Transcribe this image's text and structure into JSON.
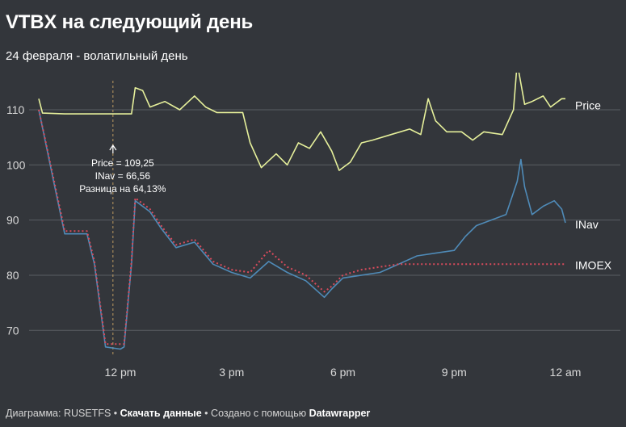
{
  "title": "VTBX на следующий день",
  "subtitle": "24 февраля - волатильный день",
  "footer": {
    "prefix": "Диаграмма: RUSETFS",
    "sep1": "•",
    "download": "Скачать данные",
    "sep2": "•",
    "created_with": "Создано с помощью",
    "tool": "Datawrapper"
  },
  "chart_data": {
    "type": "line",
    "x_ticks": [
      {
        "hour": 12,
        "label": "12 pm"
      },
      {
        "hour": 15,
        "label": "3 pm"
      },
      {
        "hour": 18,
        "label": "6 pm"
      },
      {
        "hour": 21,
        "label": "9 pm"
      },
      {
        "hour": 24,
        "label": "12 am"
      }
    ],
    "xlim": [
      9.8,
      24.0
    ],
    "y_ticks": [
      70,
      80,
      90,
      100,
      110
    ],
    "ylim": [
      65.5,
      116
    ],
    "grid": true,
    "series": [
      {
        "name": "Price",
        "color": "#e6f09b",
        "style": "solid",
        "points": [
          [
            9.8,
            112
          ],
          [
            9.9,
            109.4
          ],
          [
            10.5,
            109.25
          ],
          [
            11.2,
            109.25
          ],
          [
            12.3,
            109.25
          ],
          [
            12.4,
            114
          ],
          [
            12.6,
            113.5
          ],
          [
            12.8,
            110.5
          ],
          [
            13.2,
            111.5
          ],
          [
            13.6,
            110
          ],
          [
            14.0,
            112.5
          ],
          [
            14.3,
            110.5
          ],
          [
            14.6,
            109.5
          ],
          [
            15.3,
            109.5
          ],
          [
            15.5,
            104
          ],
          [
            15.8,
            99.5
          ],
          [
            16.2,
            102
          ],
          [
            16.5,
            100
          ],
          [
            16.8,
            104
          ],
          [
            17.1,
            103
          ],
          [
            17.4,
            106
          ],
          [
            17.7,
            102.5
          ],
          [
            17.9,
            99
          ],
          [
            18.2,
            100.5
          ],
          [
            18.5,
            104
          ],
          [
            18.8,
            104.5
          ],
          [
            19.3,
            105.5
          ],
          [
            19.8,
            106.5
          ],
          [
            20.1,
            105.5
          ],
          [
            20.3,
            112
          ],
          [
            20.5,
            108
          ],
          [
            20.8,
            106
          ],
          [
            21.2,
            106
          ],
          [
            21.5,
            104.5
          ],
          [
            21.8,
            106
          ],
          [
            22.3,
            105.5
          ],
          [
            22.6,
            110
          ],
          [
            22.7,
            118.5
          ],
          [
            22.9,
            111
          ],
          [
            23.1,
            111.5
          ],
          [
            23.4,
            112.5
          ],
          [
            23.6,
            110.5
          ],
          [
            23.9,
            112
          ],
          [
            24.0,
            112
          ]
        ]
      },
      {
        "name": "INav",
        "color": "#4f8bb8",
        "style": "solid",
        "points": [
          [
            9.8,
            110
          ],
          [
            10.2,
            97
          ],
          [
            10.5,
            87.5
          ],
          [
            11.1,
            87.5
          ],
          [
            11.3,
            82
          ],
          [
            11.6,
            67
          ],
          [
            12.0,
            66.6
          ],
          [
            12.1,
            67
          ],
          [
            12.3,
            82
          ],
          [
            12.4,
            93.5
          ],
          [
            12.8,
            91.5
          ],
          [
            13.1,
            88.5
          ],
          [
            13.5,
            85
          ],
          [
            14.0,
            86
          ],
          [
            14.5,
            82
          ],
          [
            15.0,
            80.5
          ],
          [
            15.5,
            79.5
          ],
          [
            16.0,
            82.5
          ],
          [
            16.5,
            80.5
          ],
          [
            17.0,
            79
          ],
          [
            17.5,
            76
          ],
          [
            17.7,
            77.5
          ],
          [
            18.0,
            79.5
          ],
          [
            18.5,
            80
          ],
          [
            19.0,
            80.5
          ],
          [
            19.5,
            82
          ],
          [
            20.0,
            83.5
          ],
          [
            20.5,
            84
          ],
          [
            21.0,
            84.5
          ],
          [
            21.3,
            87
          ],
          [
            21.6,
            89
          ],
          [
            22.0,
            90
          ],
          [
            22.4,
            91
          ],
          [
            22.7,
            97
          ],
          [
            22.8,
            101
          ],
          [
            22.9,
            96
          ],
          [
            23.1,
            91
          ],
          [
            23.4,
            92.5
          ],
          [
            23.7,
            93.5
          ],
          [
            23.9,
            92
          ],
          [
            24.0,
            89.5
          ]
        ]
      },
      {
        "name": "IMOEX",
        "color": "#d94b5c",
        "style": "dotted",
        "points": [
          [
            9.8,
            110
          ],
          [
            10.2,
            97.5
          ],
          [
            10.5,
            88
          ],
          [
            11.1,
            88
          ],
          [
            11.3,
            82.5
          ],
          [
            11.6,
            67.5
          ],
          [
            12.1,
            67.5
          ],
          [
            12.3,
            82.5
          ],
          [
            12.4,
            94
          ],
          [
            12.8,
            92
          ],
          [
            13.1,
            89
          ],
          [
            13.5,
            85.5
          ],
          [
            14.0,
            86.5
          ],
          [
            14.5,
            82.5
          ],
          [
            15.0,
            81
          ],
          [
            15.5,
            80.5
          ],
          [
            16.0,
            84.5
          ],
          [
            16.5,
            81.5
          ],
          [
            17.0,
            80
          ],
          [
            17.5,
            77
          ],
          [
            17.7,
            78
          ],
          [
            18.0,
            80
          ],
          [
            18.5,
            81
          ],
          [
            19.0,
            81.5
          ],
          [
            19.5,
            82
          ],
          [
            20.0,
            82
          ],
          [
            21.0,
            82
          ],
          [
            22.0,
            82
          ],
          [
            23.0,
            82
          ],
          [
            24.0,
            82
          ]
        ]
      }
    ],
    "annotation": {
      "hour": 11.8,
      "lines": [
        "Price = 109,25",
        "INav = 66,56",
        "Разница на 64,13%"
      ]
    }
  }
}
